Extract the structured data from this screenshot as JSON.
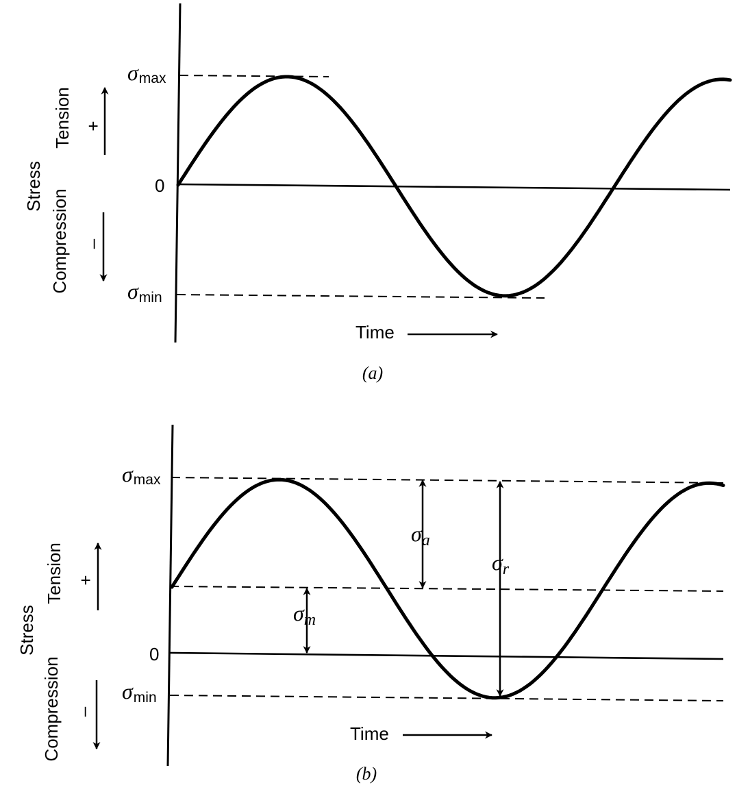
{
  "panel_a": {
    "caption": "(a)",
    "y_axis_title": "Stress",
    "tension_label": "Tension",
    "compression_label": "Compression",
    "plus_sign": "+",
    "minus_sign": "–",
    "zero_label": "0",
    "sigma_symbol": "σ",
    "sigma_max_sub": "max",
    "sigma_min_sub": "min",
    "time_label": "Time"
  },
  "panel_b": {
    "caption": "(b)",
    "y_axis_title": "Stress",
    "tension_label": "Tension",
    "compression_label": "Compression",
    "plus_sign": "+",
    "minus_sign": "–",
    "zero_label": "0",
    "sigma_symbol": "σ",
    "sigma_max_sub": "max",
    "sigma_min_sub": "min",
    "sigma_a_sub": "a",
    "sigma_r_sub": "r",
    "sigma_m_sub": "m",
    "time_label": "Time"
  }
}
